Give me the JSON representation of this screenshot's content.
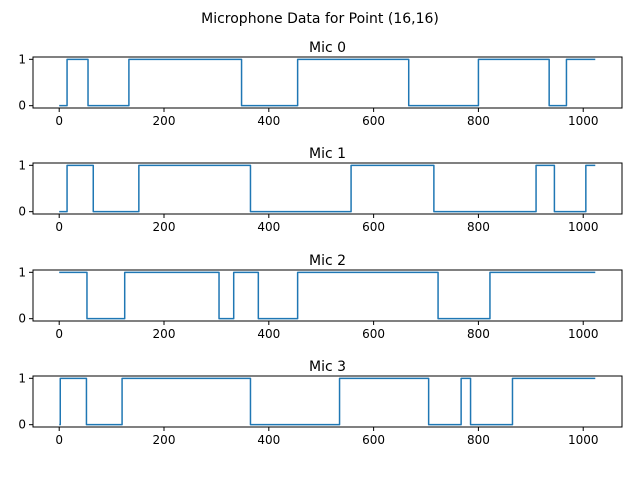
{
  "figure": {
    "suptitle": "Microphone Data for Point (16,16)"
  },
  "chart_data": [
    {
      "type": "line",
      "title": "Mic 0",
      "xlim": [
        -50,
        1074
      ],
      "ylim": [
        -0.05,
        1.05
      ],
      "xticks": [
        0,
        200,
        400,
        600,
        800,
        1000
      ],
      "yticks": [
        0,
        1
      ],
      "line_color": "#1f77b4",
      "x": [
        0,
        15,
        15,
        55,
        55,
        133,
        133,
        348,
        348,
        455,
        455,
        667,
        667,
        800,
        800,
        935,
        935,
        968,
        968,
        1023
      ],
      "y": [
        0,
        0,
        1,
        1,
        0,
        0,
        1,
        1,
        0,
        0,
        1,
        1,
        0,
        0,
        1,
        1,
        0,
        0,
        1,
        1
      ]
    },
    {
      "type": "line",
      "title": "Mic 1",
      "xlim": [
        -50,
        1074
      ],
      "ylim": [
        -0.05,
        1.05
      ],
      "xticks": [
        0,
        200,
        400,
        600,
        800,
        1000
      ],
      "yticks": [
        0,
        1
      ],
      "line_color": "#1f77b4",
      "x": [
        0,
        15,
        15,
        65,
        65,
        152,
        152,
        365,
        365,
        557,
        557,
        715,
        715,
        910,
        910,
        945,
        945,
        1005,
        1005,
        1023
      ],
      "y": [
        0,
        0,
        1,
        1,
        0,
        0,
        1,
        1,
        0,
        0,
        1,
        1,
        0,
        0,
        1,
        1,
        0,
        0,
        1,
        1
      ]
    },
    {
      "type": "line",
      "title": "Mic 2",
      "xlim": [
        -50,
        1074
      ],
      "ylim": [
        -0.05,
        1.05
      ],
      "xticks": [
        0,
        200,
        400,
        600,
        800,
        1000
      ],
      "yticks": [
        0,
        1
      ],
      "line_color": "#1f77b4",
      "x": [
        0,
        53,
        53,
        125,
        125,
        305,
        305,
        333,
        333,
        380,
        380,
        455,
        455,
        723,
        723,
        822,
        822,
        1023
      ],
      "y": [
        1,
        1,
        0,
        0,
        1,
        1,
        0,
        0,
        1,
        1,
        0,
        0,
        1,
        1,
        0,
        0,
        1,
        1
      ]
    },
    {
      "type": "line",
      "title": "Mic 3",
      "xlim": [
        -50,
        1074
      ],
      "ylim": [
        -0.05,
        1.05
      ],
      "xticks": [
        0,
        200,
        400,
        600,
        800,
        1000
      ],
      "yticks": [
        0,
        1
      ],
      "line_color": "#1f77b4",
      "x": [
        0,
        2,
        2,
        52,
        52,
        120,
        120,
        365,
        365,
        535,
        535,
        705,
        705,
        767,
        767,
        785,
        785,
        865,
        865,
        1023
      ],
      "y": [
        0,
        0,
        1,
        1,
        0,
        0,
        1,
        1,
        0,
        0,
        1,
        1,
        0,
        0,
        1,
        1,
        0,
        0,
        1,
        1
      ]
    }
  ]
}
